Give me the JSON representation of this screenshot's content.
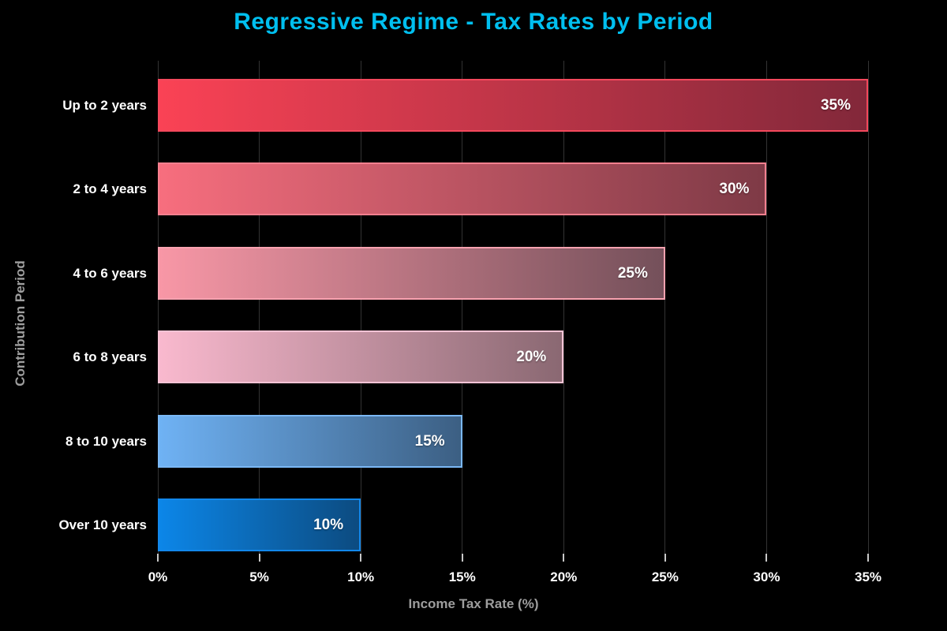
{
  "chart_data": {
    "type": "bar",
    "orientation": "horizontal",
    "title": "Regressive Regime - Tax Rates by Period",
    "xlabel": "Income Tax Rate (%)",
    "ylabel": "Contribution Period",
    "categories": [
      "Up to 2 years",
      "2 to 4 years",
      "4 to 6 years",
      "6 to 8 years",
      "8 to 10 years",
      "Over 10 years"
    ],
    "values": [
      35,
      30,
      25,
      20,
      15,
      10
    ],
    "value_labels": [
      "35%",
      "30%",
      "25%",
      "20%",
      "15%",
      "10%"
    ],
    "x_tick_values": [
      0,
      5,
      10,
      15,
      20,
      25,
      30,
      35
    ],
    "x_tick_labels": [
      "0%",
      "5%",
      "10%",
      "15%",
      "20%",
      "25%",
      "30%",
      "35%"
    ],
    "xlim": [
      0,
      37.5
    ],
    "grid": "vertical",
    "legend": "none",
    "bars": [
      {
        "category": "Up to 2 years",
        "value": 35,
        "label": "35%",
        "gradient_start": "#fa4255",
        "gradient_end": "#82283a",
        "border_color": "#f4485c"
      },
      {
        "category": "2 to 4 years",
        "value": 30,
        "label": "30%",
        "gradient_start": "#f76e7e",
        "gradient_end": "#7e3a46",
        "border_color": "#f8808f"
      },
      {
        "category": "4 to 6 years",
        "value": 25,
        "label": "25%",
        "gradient_start": "#f897a6",
        "gradient_end": "#74505a",
        "border_color": "#f9a2b0"
      },
      {
        "category": "6 to 8 years",
        "value": 20,
        "label": "20%",
        "gradient_start": "#f9b9ce",
        "gradient_end": "#8a6872",
        "border_color": "#fbc3d5"
      },
      {
        "category": "8 to 10 years",
        "value": 15,
        "label": "15%",
        "gradient_start": "#6fb2f4",
        "gradient_end": "#3c5f83",
        "border_color": "#7bb8f5"
      },
      {
        "category": "Over 10 years",
        "value": 10,
        "label": "10%",
        "gradient_start": "#0c86e8",
        "gradient_end": "#0c4b80",
        "border_color": "#1287ea"
      }
    ],
    "colors": {
      "background": "#000000",
      "title": "#00bfef",
      "axis_title": "#9e9e9e",
      "tick_label": "#ffffff",
      "category_label": "#ffffff",
      "bar_value_label": "#ffffff",
      "gridline": "#333333",
      "tick_mark": "#c8c8c8"
    }
  }
}
